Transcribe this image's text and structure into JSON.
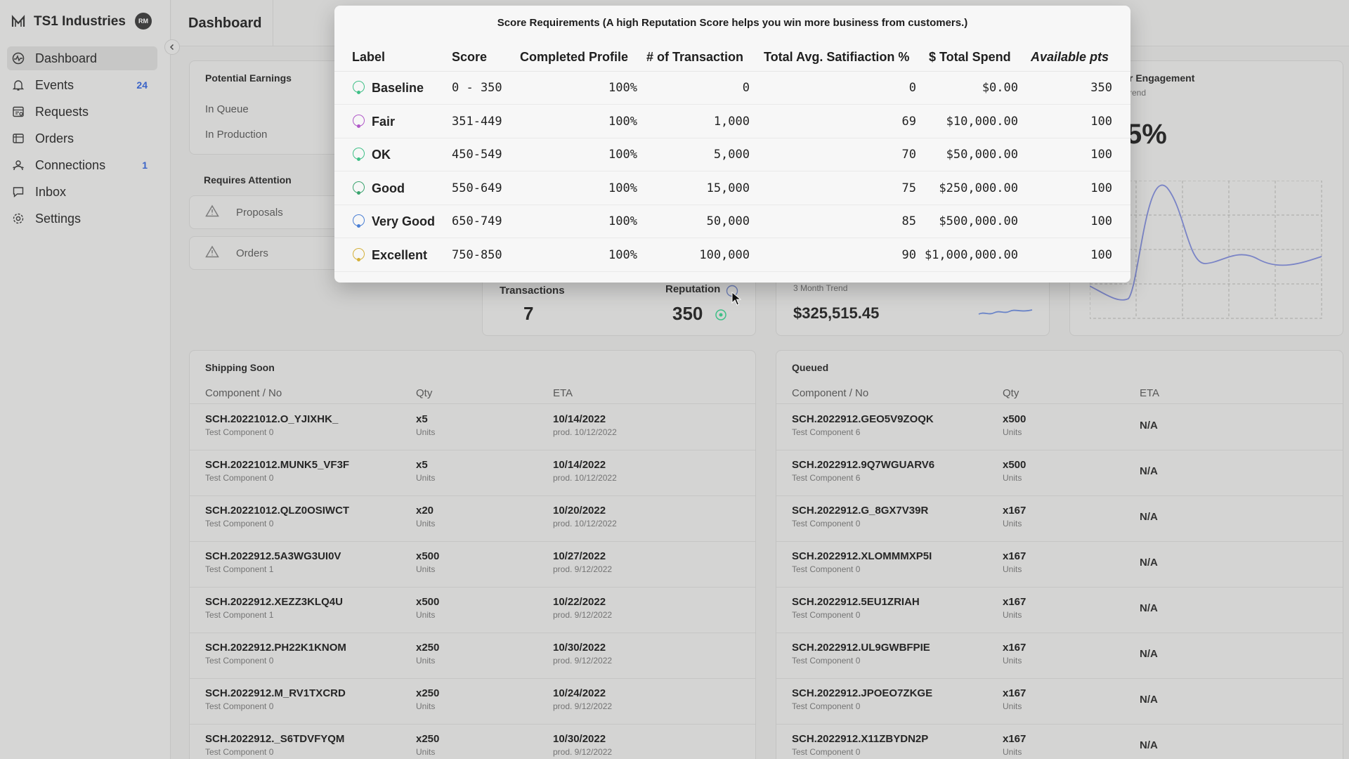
{
  "sidebar": {
    "brand": "TS1 Industries",
    "avatar": "RM",
    "items": [
      {
        "label": "Dashboard",
        "badge": ""
      },
      {
        "label": "Events",
        "badge": "24"
      },
      {
        "label": "Requests",
        "badge": ""
      },
      {
        "label": "Orders",
        "badge": ""
      },
      {
        "label": "Connections",
        "badge": "1"
      },
      {
        "label": "Inbox",
        "badge": ""
      },
      {
        "label": "Settings",
        "badge": ""
      }
    ]
  },
  "header": {
    "title": "Dashboard"
  },
  "earnings": {
    "title": "Potential Earnings",
    "in_queue": "In Queue",
    "in_production": "In Production"
  },
  "attention": {
    "title": "Requires Attention",
    "items": [
      "Proposals",
      "Orders"
    ]
  },
  "engagement": {
    "title_fragment": "r Engagement",
    "sub_fragment": "rend",
    "value_fragment": "5%"
  },
  "stats": {
    "transactions_label": "Transactions",
    "transactions_value": "7",
    "reputation_label": "Reputation",
    "reputation_value": "350",
    "trend_label": "3 Month Trend",
    "trend_value": "$325,515.45"
  },
  "popover": {
    "title": "Score Requirements (A high Reputation Score helps you win more business from customers.)",
    "columns": [
      "Label",
      "Score",
      "Completed Profile",
      "# of Transaction",
      "Total Avg. Satifiaction %",
      "$ Total Spend",
      "Available pts"
    ],
    "rows": [
      {
        "label": "Baseline",
        "score": "0 - 350",
        "profile": "100%",
        "transactions": "0",
        "satisfaction": "0",
        "spend": "$0.00",
        "pts": "350",
        "color": "#3fbf87"
      },
      {
        "label": "Fair",
        "score": "351-449",
        "profile": "100%",
        "transactions": "1,000",
        "satisfaction": "69",
        "spend": "$10,000.00",
        "pts": "100",
        "color": "#b058c8"
      },
      {
        "label": "OK",
        "score": "450-549",
        "profile": "100%",
        "transactions": "5,000",
        "satisfaction": "70",
        "spend": "$50,000.00",
        "pts": "100",
        "color": "#3fbf87"
      },
      {
        "label": "Good",
        "score": "550-649",
        "profile": "100%",
        "transactions": "15,000",
        "satisfaction": "75",
        "spend": "$250,000.00",
        "pts": "100",
        "color": "#3aa36e"
      },
      {
        "label": "Very Good",
        "score": "650-749",
        "profile": "100%",
        "transactions": "50,000",
        "satisfaction": "85",
        "spend": "$500,000.00",
        "pts": "100",
        "color": "#4a7fd4"
      },
      {
        "label": "Excellent",
        "score": "750-850",
        "profile": "100%",
        "transactions": "100,000",
        "satisfaction": "90",
        "spend": "$1,000,000.00",
        "pts": "100",
        "color": "#d4b03a"
      }
    ]
  },
  "shipping": {
    "title": "Shipping Soon",
    "columns": [
      "Component / No",
      "Qty",
      "ETA"
    ],
    "rows": [
      {
        "no": "SCH.20221012.O_YJIXHK_",
        "comp": "Test Component 0",
        "qty": "x5",
        "unit": "Units",
        "eta": "10/14/2022",
        "prod": "prod. 10/12/2022"
      },
      {
        "no": "SCH.20221012.MUNK5_VF3F",
        "comp": "Test Component 0",
        "qty": "x5",
        "unit": "Units",
        "eta": "10/14/2022",
        "prod": "prod. 10/12/2022"
      },
      {
        "no": "SCH.20221012.QLZ0OSIWCT",
        "comp": "Test Component 0",
        "qty": "x20",
        "unit": "Units",
        "eta": "10/20/2022",
        "prod": "prod. 10/12/2022"
      },
      {
        "no": "SCH.2022912.5A3WG3UI0V",
        "comp": "Test Component 1",
        "qty": "x500",
        "unit": "Units",
        "eta": "10/27/2022",
        "prod": "prod. 9/12/2022"
      },
      {
        "no": "SCH.2022912.XEZZ3KLQ4U",
        "comp": "Test Component 1",
        "qty": "x500",
        "unit": "Units",
        "eta": "10/22/2022",
        "prod": "prod. 9/12/2022"
      },
      {
        "no": "SCH.2022912.PH22K1KNOM",
        "comp": "Test Component 0",
        "qty": "x250",
        "unit": "Units",
        "eta": "10/30/2022",
        "prod": "prod. 9/12/2022"
      },
      {
        "no": "SCH.2022912.M_RV1TXCRD",
        "comp": "Test Component 0",
        "qty": "x250",
        "unit": "Units",
        "eta": "10/24/2022",
        "prod": "prod. 9/12/2022"
      },
      {
        "no": "SCH.2022912._S6TDVFYQM",
        "comp": "Test Component 0",
        "qty": "x250",
        "unit": "Units",
        "eta": "10/30/2022",
        "prod": "prod. 9/12/2022"
      }
    ]
  },
  "queued": {
    "title": "Queued",
    "columns": [
      "Component / No",
      "Qty",
      "ETA"
    ],
    "rows": [
      {
        "no": "SCH.2022912.GEO5V9ZOQK",
        "comp": "Test Component 6",
        "qty": "x500",
        "unit": "Units",
        "eta": "N/A"
      },
      {
        "no": "SCH.2022912.9Q7WGUARV6",
        "comp": "Test Component 6",
        "qty": "x500",
        "unit": "Units",
        "eta": "N/A"
      },
      {
        "no": "SCH.2022912.G_8GX7V39R",
        "comp": "Test Component 0",
        "qty": "x167",
        "unit": "Units",
        "eta": "N/A"
      },
      {
        "no": "SCH.2022912.XLOMMMXP5I",
        "comp": "Test Component 0",
        "qty": "x167",
        "unit": "Units",
        "eta": "N/A"
      },
      {
        "no": "SCH.2022912.5EU1ZRIAH",
        "comp": "Test Component 0",
        "qty": "x167",
        "unit": "Units",
        "eta": "N/A"
      },
      {
        "no": "SCH.2022912.UL9GWBFPIE",
        "comp": "Test Component 0",
        "qty": "x167",
        "unit": "Units",
        "eta": "N/A"
      },
      {
        "no": "SCH.2022912.JPOEO7ZKGE",
        "comp": "Test Component 0",
        "qty": "x167",
        "unit": "Units",
        "eta": "N/A"
      },
      {
        "no": "SCH.2022912.X11ZBYDN2P",
        "comp": "Test Component 0",
        "qty": "x167",
        "unit": "Units",
        "eta": "N/A"
      }
    ]
  }
}
